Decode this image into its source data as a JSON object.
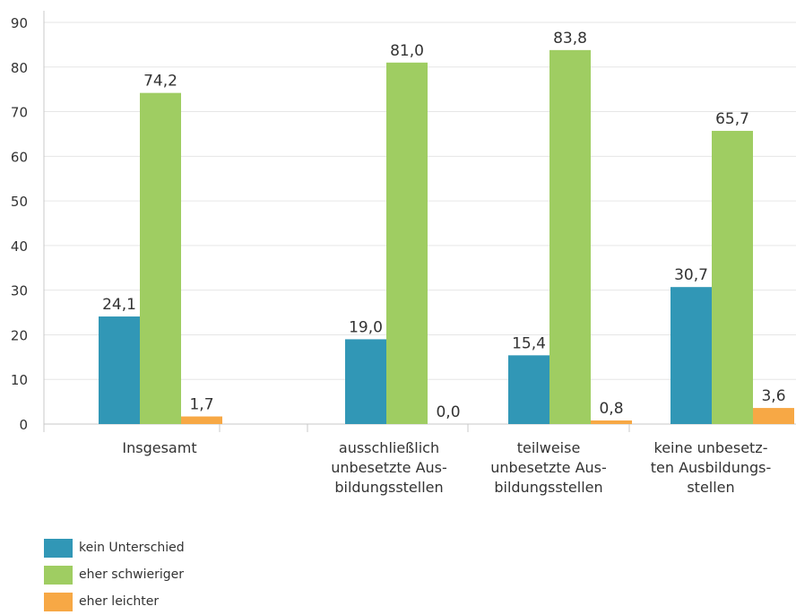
{
  "chart_data": {
    "type": "bar",
    "title": "",
    "xlabel": "",
    "ylabel": "",
    "ylim": [
      0,
      90
    ],
    "yticks": [
      "0",
      "10",
      "20",
      "30",
      "40",
      "50",
      "60",
      "70",
      "80",
      "90"
    ],
    "categories": [
      [
        "Insgesamt"
      ],
      [
        "ausschließlich",
        "unbesetzte Aus-",
        "bildungsstellen"
      ],
      [
        "teilweise",
        "unbesetzte Aus-",
        "bildungsstellen"
      ],
      [
        "keine unbesetz-",
        "ten Ausbildungs-",
        "stellen"
      ]
    ],
    "series": [
      {
        "name": "kein Unterschied",
        "color": "#3197b6",
        "values": [
          24.1,
          19.0,
          15.4,
          30.7
        ],
        "labels": [
          "24,1",
          "19,0",
          "15,4",
          "30,7"
        ]
      },
      {
        "name": "eher schwieriger",
        "color": "#9fcd62",
        "values": [
          74.2,
          81.0,
          83.8,
          65.7
        ],
        "labels": [
          "74,2",
          "81,0",
          "83,8",
          "65,7"
        ]
      },
      {
        "name": "eher leichter",
        "color": "#f7a845",
        "values": [
          1.7,
          0.0,
          0.8,
          3.6
        ],
        "labels": [
          "1,7",
          "0,0",
          "0,8",
          "3,6"
        ]
      }
    ],
    "grid": true,
    "legend_position": "bottom-left"
  }
}
